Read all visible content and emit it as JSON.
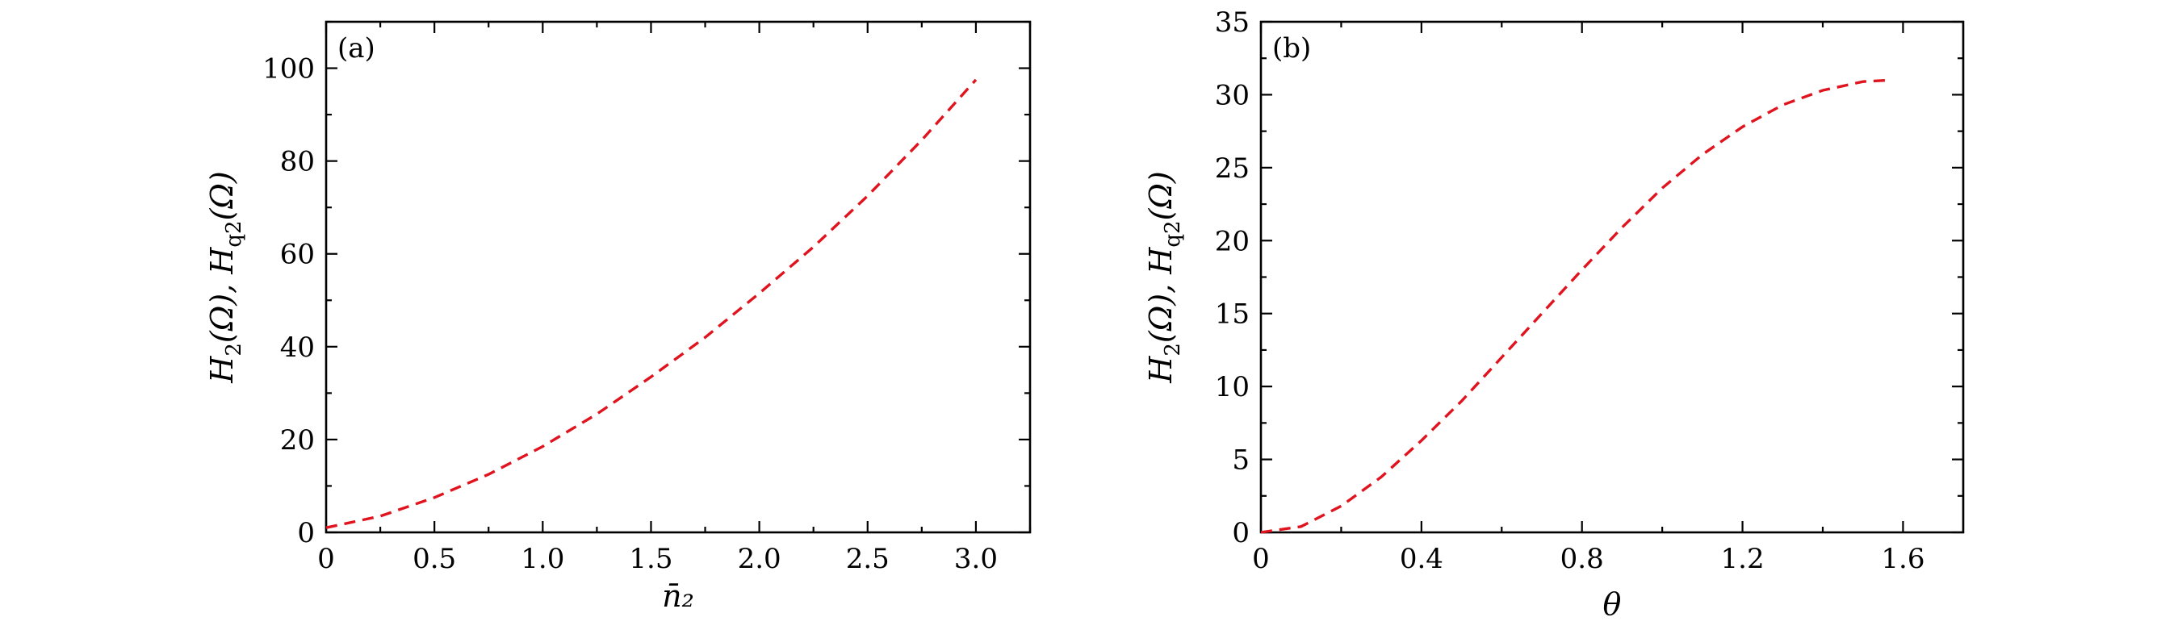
{
  "chart_data": [
    {
      "type": "line",
      "panel_label": "(a)",
      "xlabel": "n̄₂",
      "ylabel_parts": {
        "h": "H",
        "sub1": "2",
        "arg1": "(Ω), ",
        "sub2": "q2",
        "arg2": "(Ω)"
      },
      "xlim": [
        0,
        3.25
      ],
      "ylim": [
        0,
        110
      ],
      "xticks": [
        0,
        0.5,
        1.0,
        1.5,
        2.0,
        2.5,
        3.0
      ],
      "xtick_labels": [
        "0",
        "0.5",
        "1.0",
        "1.5",
        "2.0",
        "2.5",
        "3.0"
      ],
      "yticks": [
        0,
        20,
        40,
        60,
        80,
        100
      ],
      "ytick_labels": [
        "0",
        "20",
        "40",
        "60",
        "80",
        "100"
      ],
      "series": [
        {
          "name": "H2(Ω), Hq2(Ω)",
          "style": "dashed",
          "color": "#e0141e",
          "x": [
            0,
            0.25,
            0.5,
            0.75,
            1.0,
            1.25,
            1.5,
            1.75,
            2.0,
            2.25,
            2.5,
            2.75,
            3.0
          ],
          "y": [
            1,
            3.5,
            7.5,
            12.5,
            18.5,
            25.5,
            33.5,
            42,
            51.5,
            61.5,
            72.5,
            84.5,
            97.5
          ]
        }
      ]
    },
    {
      "type": "line",
      "panel_label": "(b)",
      "xlabel": "θ",
      "ylabel_parts": {
        "h": "H",
        "sub1": "2",
        "arg1": "(Ω), ",
        "sub2": "q2",
        "arg2": "(Ω)"
      },
      "xlim": [
        0,
        1.75
      ],
      "ylim": [
        0,
        35
      ],
      "xticks": [
        0,
        0.4,
        0.8,
        1.2,
        1.6
      ],
      "xtick_labels": [
        "0",
        "0.4",
        "0.8",
        "1.2",
        "1.6"
      ],
      "yticks": [
        0,
        5,
        10,
        15,
        20,
        25,
        30,
        35
      ],
      "ytick_labels": [
        "0",
        "5",
        "10",
        "15",
        "20",
        "25",
        "30",
        "35"
      ],
      "series": [
        {
          "name": "H2(Ω), Hq2(Ω)",
          "style": "dashed",
          "color": "#e0141e",
          "x": [
            0,
            0.1,
            0.2,
            0.3,
            0.4,
            0.5,
            0.6,
            0.7,
            0.8,
            0.9,
            1.0,
            1.1,
            1.2,
            1.3,
            1.4,
            1.5,
            1.571
          ],
          "y": [
            0,
            0.4,
            1.8,
            3.8,
            6.3,
            9.0,
            12.0,
            15.0,
            18.0,
            20.9,
            23.6,
            25.9,
            27.8,
            29.3,
            30.3,
            30.9,
            31.0
          ]
        }
      ]
    }
  ]
}
